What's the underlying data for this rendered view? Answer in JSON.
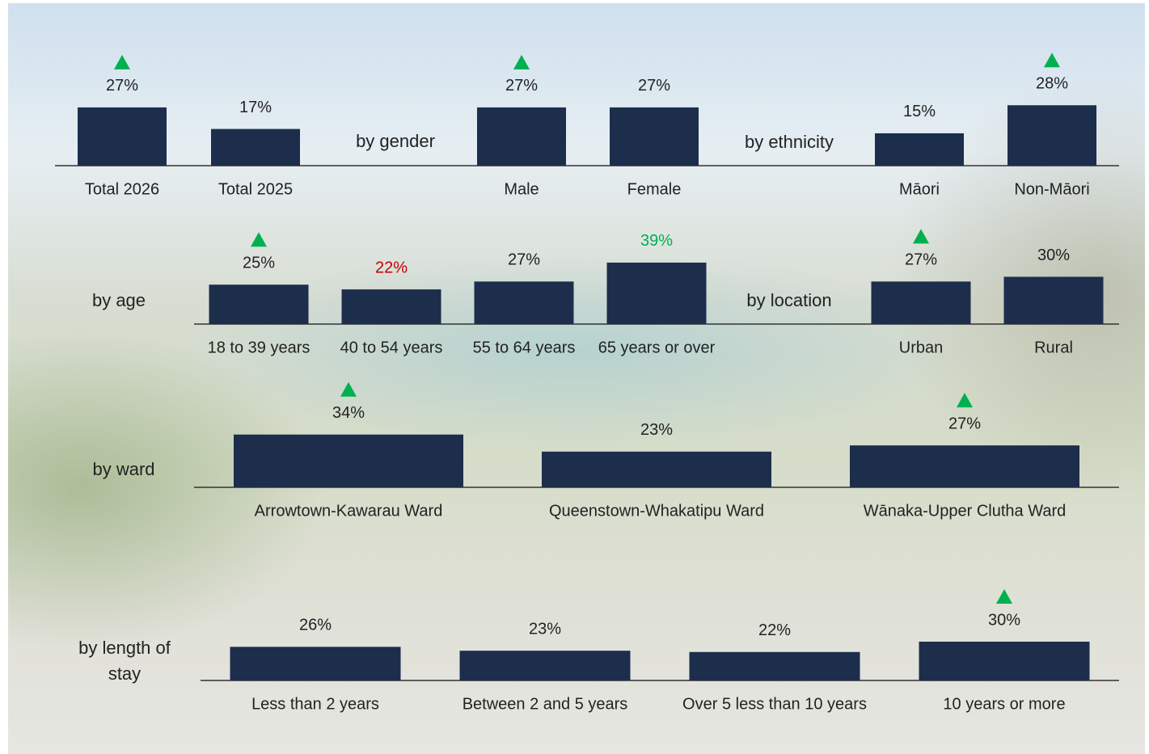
{
  "chart_data": [
    {
      "type": "bar",
      "categories": [
        "Total 2026",
        "Total 2025"
      ],
      "values": [
        27,
        17
      ],
      "value_labels": [
        "27%",
        "17%"
      ],
      "value_label_colors": [
        "#222222",
        "#222222"
      ],
      "increase_markers": [
        true,
        false
      ],
      "color": "#1c2e4c"
    },
    {
      "type": "bar",
      "title": "by gender",
      "categories": [
        "Male",
        "Female"
      ],
      "values": [
        27,
        27
      ],
      "value_labels": [
        "27%",
        "27%"
      ],
      "value_label_colors": [
        "#222222",
        "#222222"
      ],
      "increase_markers": [
        true,
        false
      ],
      "color": "#1c2e4c"
    },
    {
      "type": "bar",
      "title": "by ethnicity",
      "categories": [
        "Māori",
        "Non-Māori"
      ],
      "values": [
        15,
        28
      ],
      "value_labels": [
        "15%",
        "28%"
      ],
      "value_label_colors": [
        "#222222",
        "#222222"
      ],
      "increase_markers": [
        false,
        true
      ],
      "color": "#1c2e4c"
    },
    {
      "type": "bar",
      "title": "by age",
      "categories": [
        "18 to 39 years",
        "40 to 54 years",
        "55 to 64 years",
        "65 years or over"
      ],
      "values": [
        25,
        22,
        27,
        39
      ],
      "value_labels": [
        "25%",
        "22%",
        "27%",
        "39%"
      ],
      "value_label_colors": [
        "#222222",
        "#c00000",
        "#222222",
        "#00b050"
      ],
      "increase_markers": [
        true,
        false,
        false,
        false
      ],
      "color": "#1c2e4c"
    },
    {
      "type": "bar",
      "title": "by location",
      "categories": [
        "Urban",
        "Rural"
      ],
      "values": [
        27,
        30
      ],
      "value_labels": [
        "27%",
        "30%"
      ],
      "value_label_colors": [
        "#222222",
        "#222222"
      ],
      "increase_markers": [
        true,
        false
      ],
      "color": "#1c2e4c"
    },
    {
      "type": "bar",
      "title": "by ward",
      "categories": [
        "Arrowtown-Kawarau Ward",
        "Queenstown-Whakatipu Ward",
        "Wānaka-Upper Clutha Ward"
      ],
      "values": [
        34,
        23,
        27
      ],
      "value_labels": [
        "34%",
        "23%",
        "27%"
      ],
      "value_label_colors": [
        "#222222",
        "#222222",
        "#222222"
      ],
      "increase_markers": [
        true,
        false,
        true
      ],
      "color": "#1c2e4c"
    },
    {
      "type": "bar",
      "title": "by length of stay",
      "categories": [
        "Less than 2 years",
        "Between 2 and 5 years",
        "Over 5 less than 10 years",
        "10 years or more"
      ],
      "values": [
        26,
        23,
        22,
        30
      ],
      "value_labels": [
        "26%",
        "23%",
        "22%",
        "30%"
      ],
      "value_label_colors": [
        "#222222",
        "#222222",
        "#222222",
        "#222222"
      ],
      "increase_markers": [
        false,
        false,
        false,
        true
      ],
      "color": "#1c2e4c"
    }
  ]
}
